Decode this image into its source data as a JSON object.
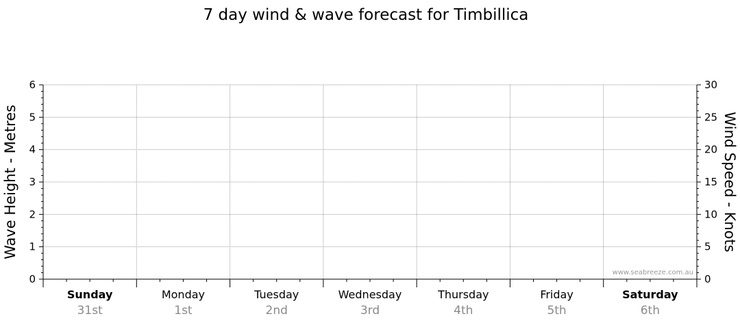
{
  "chart_data": {
    "type": "line",
    "title": "7 day wind & wave forecast for Timbillica",
    "ylabel_left": "Wave Height - Metres",
    "ylabel_right": "Wind Speed - Knots",
    "ylim_left": [
      0,
      6
    ],
    "ylim_right": [
      0,
      30
    ],
    "left_ticks": [
      "0",
      "1",
      "2",
      "3",
      "4",
      "5",
      "6"
    ],
    "right_ticks": [
      "0",
      "5",
      "10",
      "15",
      "20",
      "25",
      "30"
    ],
    "grid": true,
    "days": [
      {
        "name": "Sunday",
        "date": "31st",
        "bold": true
      },
      {
        "name": "Monday",
        "date": "1st",
        "bold": false
      },
      {
        "name": "Tuesday",
        "date": "2nd",
        "bold": false
      },
      {
        "name": "Wednesday",
        "date": "3rd",
        "bold": false
      },
      {
        "name": "Thursday",
        "date": "4th",
        "bold": false
      },
      {
        "name": "Friday",
        "date": "5th",
        "bold": false
      },
      {
        "name": "Saturday",
        "date": "6th",
        "bold": true
      }
    ],
    "series": []
  },
  "watermark": "www.seabreeze.com.au",
  "colors": {
    "grid": "#999999",
    "axis": "#000000",
    "date_text": "#8a8a8a"
  }
}
